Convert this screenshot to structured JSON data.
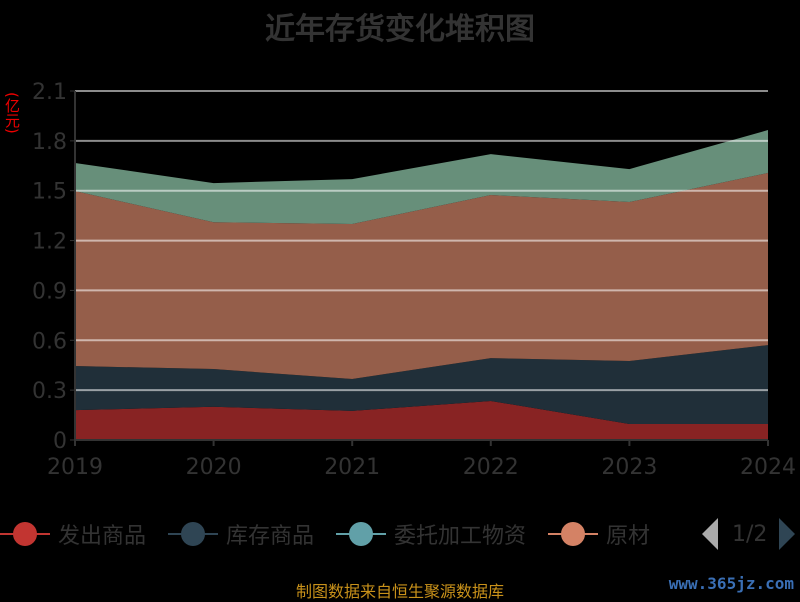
{
  "chart_data": {
    "type": "area",
    "stacked": true,
    "title": "近年存货变化堆积图",
    "ylabel": "(亿元)",
    "xlabel": "",
    "x": [
      "2019",
      "2020",
      "2021",
      "2022",
      "2023",
      "2024"
    ],
    "ylim": [
      0,
      2.1
    ],
    "yticks": [
      "0",
      "0.3",
      "0.6",
      "0.9",
      "1.2",
      "1.5",
      "1.8",
      "2.1"
    ],
    "grid": true,
    "legend_position": "bottom",
    "series": [
      {
        "name": "发出商品",
        "values": [
          0.18,
          0.2,
          0.175,
          0.235,
          0.096,
          0.096
        ],
        "color": "#c23531",
        "fill": "#882323"
      },
      {
        "name": "库存商品",
        "values": [
          0.265,
          0.227,
          0.192,
          0.258,
          0.379,
          0.475
        ],
        "color": "#2f4554",
        "fill": "#202f39"
      },
      {
        "name": "原材料",
        "values": [
          1.053,
          0.883,
          0.933,
          0.981,
          0.957,
          1.036
        ],
        "color": "#d48265",
        "fill": "#955e4a"
      },
      {
        "name": "委托加工物资",
        "values": [
          0.169,
          0.236,
          0.27,
          0.246,
          0.198,
          0.258
        ],
        "color": "#61a0a8",
        "fill": "#678f7a"
      }
    ]
  },
  "legend": {
    "items": [
      {
        "label": "发出商品",
        "color": "#c23531"
      },
      {
        "label": "库存商品",
        "color": "#2f4554"
      },
      {
        "label": "委托加工物资",
        "color": "#61a0a8"
      },
      {
        "label": "原材料",
        "color": "#d48265"
      }
    ],
    "page": "1/2"
  },
  "source": "制图数据来自恒生聚源数据库",
  "watermark": "www.365jz.com"
}
